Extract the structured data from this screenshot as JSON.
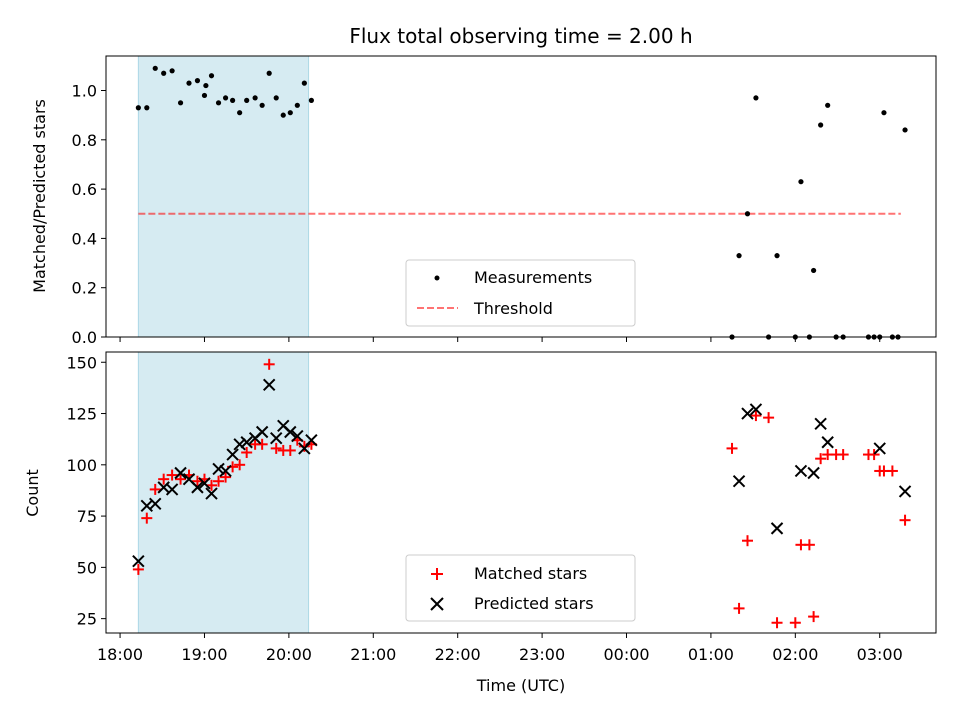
{
  "chart_data": [
    {
      "type": "scatter",
      "title": "Flux total observing time = 2.00 h",
      "xlabel": "",
      "ylabel": "Matched/Predicted stars",
      "xlim": [
        "17:50",
        "03:40"
      ],
      "ylim": [
        0,
        1.14
      ],
      "yticks": [
        "0.0",
        "0.2",
        "0.4",
        "0.6",
        "0.8",
        "1.0"
      ],
      "shaded_interval": [
        "18:13",
        "20:14"
      ],
      "threshold": 0.5,
      "threshold_range": [
        "18:13",
        "03:15"
      ],
      "legend": {
        "placement": "lower center",
        "entries": [
          "Measurements",
          "Threshold"
        ]
      },
      "series": [
        {
          "name": "Measurements",
          "color": "#000000",
          "points": [
            [
              "18:13",
              0.93
            ],
            [
              "18:19",
              0.93
            ],
            [
              "18:25",
              1.09
            ],
            [
              "18:31",
              1.07
            ],
            [
              "18:37",
              1.08
            ],
            [
              "18:43",
              0.95
            ],
            [
              "18:49",
              1.03
            ],
            [
              "18:55",
              1.04
            ],
            [
              "19:01",
              1.02
            ],
            [
              "19:00",
              0.98
            ],
            [
              "19:05",
              1.06
            ],
            [
              "19:10",
              0.95
            ],
            [
              "19:15",
              0.97
            ],
            [
              "19:20",
              0.96
            ],
            [
              "19:25",
              0.91
            ],
            [
              "19:30",
              0.96
            ],
            [
              "19:36",
              0.97
            ],
            [
              "19:41",
              0.94
            ],
            [
              "19:46",
              1.07
            ],
            [
              "19:51",
              0.97
            ],
            [
              "19:56",
              0.9
            ],
            [
              "20:01",
              0.91
            ],
            [
              "20:06",
              0.94
            ],
            [
              "20:11",
              1.03
            ],
            [
              "20:16",
              0.96
            ],
            [
              "01:15",
              0.0
            ],
            [
              "01:20",
              0.33
            ],
            [
              "01:26",
              0.5
            ],
            [
              "01:32",
              0.97
            ],
            [
              "01:41",
              0.0
            ],
            [
              "01:47",
              0.33
            ],
            [
              "02:00",
              0.0
            ],
            [
              "02:04",
              0.63
            ],
            [
              "02:10",
              0.0
            ],
            [
              "02:13",
              0.27
            ],
            [
              "02:18",
              0.86
            ],
            [
              "02:23",
              0.94
            ],
            [
              "02:29",
              0.0
            ],
            [
              "02:34",
              0.0
            ],
            [
              "02:52",
              0.0
            ],
            [
              "02:56",
              0.0
            ],
            [
              "03:00",
              0.0
            ],
            [
              "03:03",
              0.91
            ],
            [
              "03:09",
              0.0
            ],
            [
              "03:13",
              0.0
            ],
            [
              "03:18",
              0.84
            ]
          ]
        }
      ]
    },
    {
      "type": "scatter",
      "title": "",
      "xlabel": "Time (UTC)",
      "ylabel": "Count",
      "xlim": [
        "17:50",
        "03:40"
      ],
      "ylim": [
        18,
        155
      ],
      "xticks": [
        "18:00",
        "19:00",
        "20:00",
        "21:00",
        "22:00",
        "23:00",
        "00:00",
        "01:00",
        "02:00",
        "03:00"
      ],
      "yticks": [
        "25",
        "50",
        "75",
        "100",
        "125",
        "150"
      ],
      "shaded_interval": [
        "18:13",
        "20:14"
      ],
      "legend": {
        "placement": "lower center",
        "entries": [
          "Matched stars",
          "Predicted stars"
        ]
      },
      "series": [
        {
          "name": "Matched stars",
          "color": "#ff0000",
          "marker": "+",
          "points": [
            [
              "18:13",
              49
            ],
            [
              "18:19",
              74
            ],
            [
              "18:25",
              88
            ],
            [
              "18:31",
              93
            ],
            [
              "18:37",
              95
            ],
            [
              "18:43",
              93
            ],
            [
              "18:49",
              95
            ],
            [
              "18:55",
              92
            ],
            [
              "19:00",
              93
            ],
            [
              "19:05",
              90
            ],
            [
              "19:10",
              92
            ],
            [
              "19:15",
              94
            ],
            [
              "19:20",
              99
            ],
            [
              "19:25",
              100
            ],
            [
              "19:30",
              106
            ],
            [
              "19:36",
              110
            ],
            [
              "19:41",
              110
            ],
            [
              "19:46",
              149
            ],
            [
              "19:51",
              108
            ],
            [
              "19:56",
              107
            ],
            [
              "20:01",
              107
            ],
            [
              "20:06",
              112
            ],
            [
              "20:11",
              109
            ],
            [
              "20:16",
              110
            ],
            [
              "01:15",
              108
            ],
            [
              "01:20",
              30
            ],
            [
              "01:26",
              63
            ],
            [
              "01:32",
              124
            ],
            [
              "01:41",
              123
            ],
            [
              "01:47",
              23
            ],
            [
              "02:00",
              23
            ],
            [
              "02:04",
              61
            ],
            [
              "02:10",
              61
            ],
            [
              "02:13",
              26
            ],
            [
              "02:18",
              103
            ],
            [
              "02:23",
              105
            ],
            [
              "02:29",
              105
            ],
            [
              "02:34",
              105
            ],
            [
              "02:52",
              105
            ],
            [
              "02:56",
              105
            ],
            [
              "03:00",
              97
            ],
            [
              "03:03",
              97
            ],
            [
              "03:09",
              97
            ],
            [
              "03:18",
              73
            ]
          ]
        },
        {
          "name": "Predicted stars",
          "color": "#000000",
          "marker": "x",
          "points": [
            [
              "18:13",
              53
            ],
            [
              "18:19",
              80
            ],
            [
              "18:25",
              81
            ],
            [
              "18:31",
              89
            ],
            [
              "18:37",
              88
            ],
            [
              "18:43",
              96
            ],
            [
              "18:49",
              93
            ],
            [
              "18:55",
              89
            ],
            [
              "19:00",
              91
            ],
            [
              "19:05",
              86
            ],
            [
              "19:10",
              98
            ],
            [
              "19:15",
              97
            ],
            [
              "19:20",
              105
            ],
            [
              "19:25",
              110
            ],
            [
              "19:30",
              111
            ],
            [
              "19:36",
              113
            ],
            [
              "19:41",
              116
            ],
            [
              "19:46",
              139
            ],
            [
              "19:51",
              113
            ],
            [
              "19:56",
              119
            ],
            [
              "20:01",
              116
            ],
            [
              "20:06",
              114
            ],
            [
              "20:11",
              108
            ],
            [
              "20:16",
              112
            ],
            [
              "01:20",
              92
            ],
            [
              "01:26",
              125
            ],
            [
              "01:32",
              127
            ],
            [
              "01:47",
              69
            ],
            [
              "02:04",
              97
            ],
            [
              "02:13",
              96
            ],
            [
              "02:18",
              120
            ],
            [
              "02:23",
              111
            ],
            [
              "03:00",
              108
            ],
            [
              "03:18",
              87
            ]
          ]
        }
      ]
    }
  ],
  "colors": {
    "shade": "#add8e6",
    "threshold": "#ff0000",
    "matched": "#ff0000",
    "predicted": "#000000",
    "measurements": "#000000"
  }
}
